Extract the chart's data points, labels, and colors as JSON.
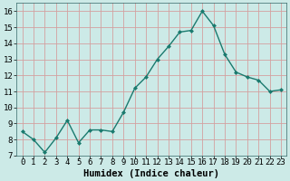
{
  "x": [
    0,
    1,
    2,
    3,
    4,
    5,
    6,
    7,
    8,
    9,
    10,
    11,
    12,
    13,
    14,
    15,
    16,
    17,
    18,
    19,
    20,
    21,
    22,
    23
  ],
  "y": [
    8.5,
    8.0,
    7.2,
    8.1,
    9.2,
    7.8,
    8.6,
    8.6,
    8.5,
    9.7,
    11.2,
    11.9,
    13.0,
    13.8,
    14.7,
    14.8,
    16.0,
    15.1,
    13.3,
    12.2,
    11.9,
    11.7,
    11.0,
    11.1
  ],
  "xlabel": "Humidex (Indice chaleur)",
  "ylim": [
    7,
    16.5
  ],
  "xlim": [
    -0.5,
    23.5
  ],
  "yticks": [
    7,
    8,
    9,
    10,
    11,
    12,
    13,
    14,
    15,
    16
  ],
  "xtick_labels": [
    "0",
    "1",
    "2",
    "3",
    "4",
    "5",
    "6",
    "7",
    "8",
    "9",
    "10",
    "11",
    "12",
    "13",
    "14",
    "15",
    "16",
    "17",
    "18",
    "19",
    "20",
    "21",
    "22",
    "23"
  ],
  "line_color": "#1a7a6e",
  "marker": "D",
  "marker_size": 2.0,
  "bg_color": "#cceae7",
  "grid_color_major": "#d4a0a0",
  "grid_color_minor": "#cceae7",
  "font_family": "monospace",
  "tick_fontsize": 6.5,
  "xlabel_fontsize": 7.5
}
